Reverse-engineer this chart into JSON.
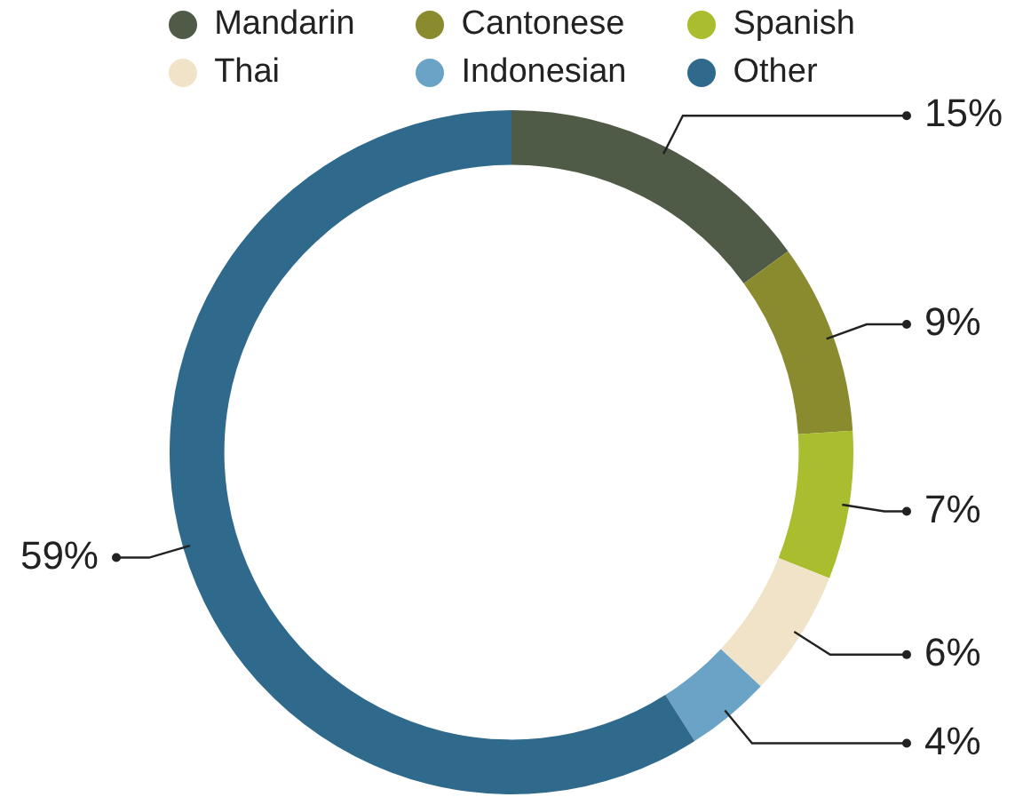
{
  "chart_data": {
    "type": "donut",
    "categories": [
      "Mandarin",
      "Cantonese",
      "Spanish",
      "Thai",
      "Indonesian",
      "Other"
    ],
    "values": [
      15,
      9,
      7,
      6,
      4,
      59
    ],
    "value_labels": [
      "15%",
      "9%",
      "7%",
      "6%",
      "4%",
      "59%"
    ],
    "colors": [
      "#4f5a47",
      "#8a8a2f",
      "#a9bd2e",
      "#f1e3c8",
      "#6aa3c6",
      "#2f6a8c"
    ],
    "legend": "top"
  }
}
